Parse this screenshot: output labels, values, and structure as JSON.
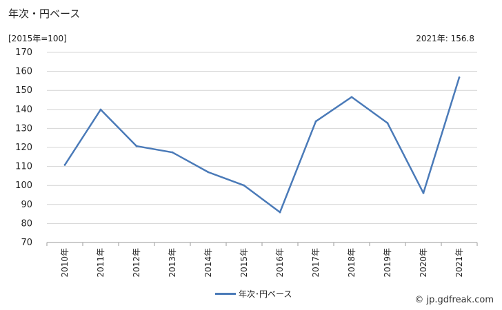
{
  "header": {
    "title": "年次・円ベース",
    "unit": "[2015年=100]",
    "latest": "2021年: 156.8"
  },
  "footer": {
    "source": "© jp.gdfreak.com"
  },
  "colors": {
    "series": "#4a7ab8",
    "grid": "#d4d4d4",
    "axis": "#999999"
  },
  "chart_data": {
    "type": "line",
    "categories": [
      "2010年",
      "2011年",
      "2012年",
      "2013年",
      "2014年",
      "2015年",
      "2016年",
      "2017年",
      "2018年",
      "2019年",
      "2020年",
      "2021年"
    ],
    "series": [
      {
        "name": "年次･円ベース",
        "values": [
          110.8,
          139.9,
          120.7,
          117.4,
          107.0,
          100.0,
          85.9,
          133.7,
          146.5,
          132.8,
          96.0,
          156.8
        ]
      }
    ],
    "yticks": [
      "70",
      "80",
      "90",
      "100",
      "110",
      "120",
      "130",
      "140",
      "150",
      "160",
      "170"
    ],
    "ylim": [
      70,
      170
    ],
    "grid": true,
    "legend_position": "bottom"
  }
}
